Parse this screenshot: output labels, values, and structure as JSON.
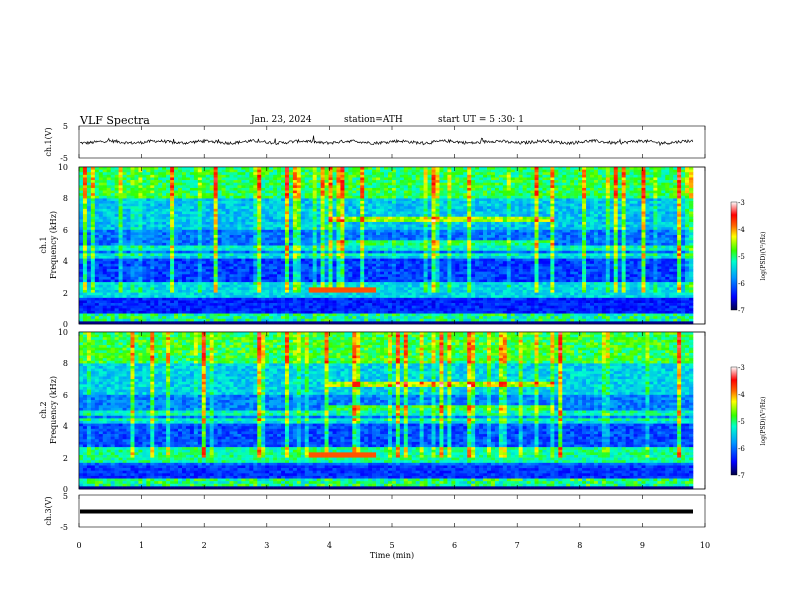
{
  "header": {
    "title": "VLF  Spectra",
    "date": "Jan. 23, 2024",
    "station": "station=ATH",
    "start_ut": "start  UT  =   5  :30: 1"
  },
  "chart_data": [
    {
      "type": "line",
      "ylabel": "ch.1(V)",
      "ylim": [
        -5,
        5
      ],
      "yticks": [
        "5",
        "-5"
      ],
      "baseline": 0,
      "color": "#000000"
    },
    {
      "type": "heatmap",
      "ylabel_line1": "ch.1",
      "ylabel_line2": "Frequency (kHz)",
      "ylim": [
        0,
        10
      ],
      "yticks": [
        "0",
        "2",
        "4",
        "6",
        "8",
        "10"
      ],
      "colorbar": {
        "label": "log(PSD)(V²/Hz)",
        "range": [
          -7,
          -3
        ],
        "ticks": [
          "-3",
          "-4",
          "-5",
          "-6",
          "-7"
        ],
        "colors": [
          "#000044",
          "#0000ff",
          "#0099ff",
          "#00ffcc",
          "#33ff00",
          "#ffff00",
          "#ff6600",
          "#ff0000",
          "#ffffff"
        ]
      }
    },
    {
      "type": "heatmap",
      "ylabel_line1": "ch.2",
      "ylabel_line2": "Frequency (kHz)",
      "ylim": [
        0,
        10
      ],
      "yticks": [
        "0",
        "2",
        "4",
        "6",
        "8",
        "10"
      ],
      "colorbar": {
        "label": "log(PSD)(V²/Hz)",
        "range": [
          -7,
          -3
        ],
        "ticks": [
          "-3",
          "-4",
          "-5",
          "-6",
          "-7"
        ],
        "colors": [
          "#000044",
          "#0000ff",
          "#0099ff",
          "#00ffcc",
          "#33ff00",
          "#ffff00",
          "#ff6600",
          "#ff0000",
          "#ffffff"
        ]
      }
    },
    {
      "type": "line",
      "ylabel": "ch.3(V)",
      "ylim": [
        -5,
        5
      ],
      "yticks": [
        "5",
        "-5"
      ],
      "baseline": -2,
      "color": "#000000"
    }
  ],
  "xaxis": {
    "label": "Time (min)",
    "range": [
      0,
      10
    ],
    "ticks": [
      "0",
      "1",
      "2",
      "3",
      "4",
      "5",
      "6",
      "7",
      "8",
      "9",
      "10"
    ]
  }
}
